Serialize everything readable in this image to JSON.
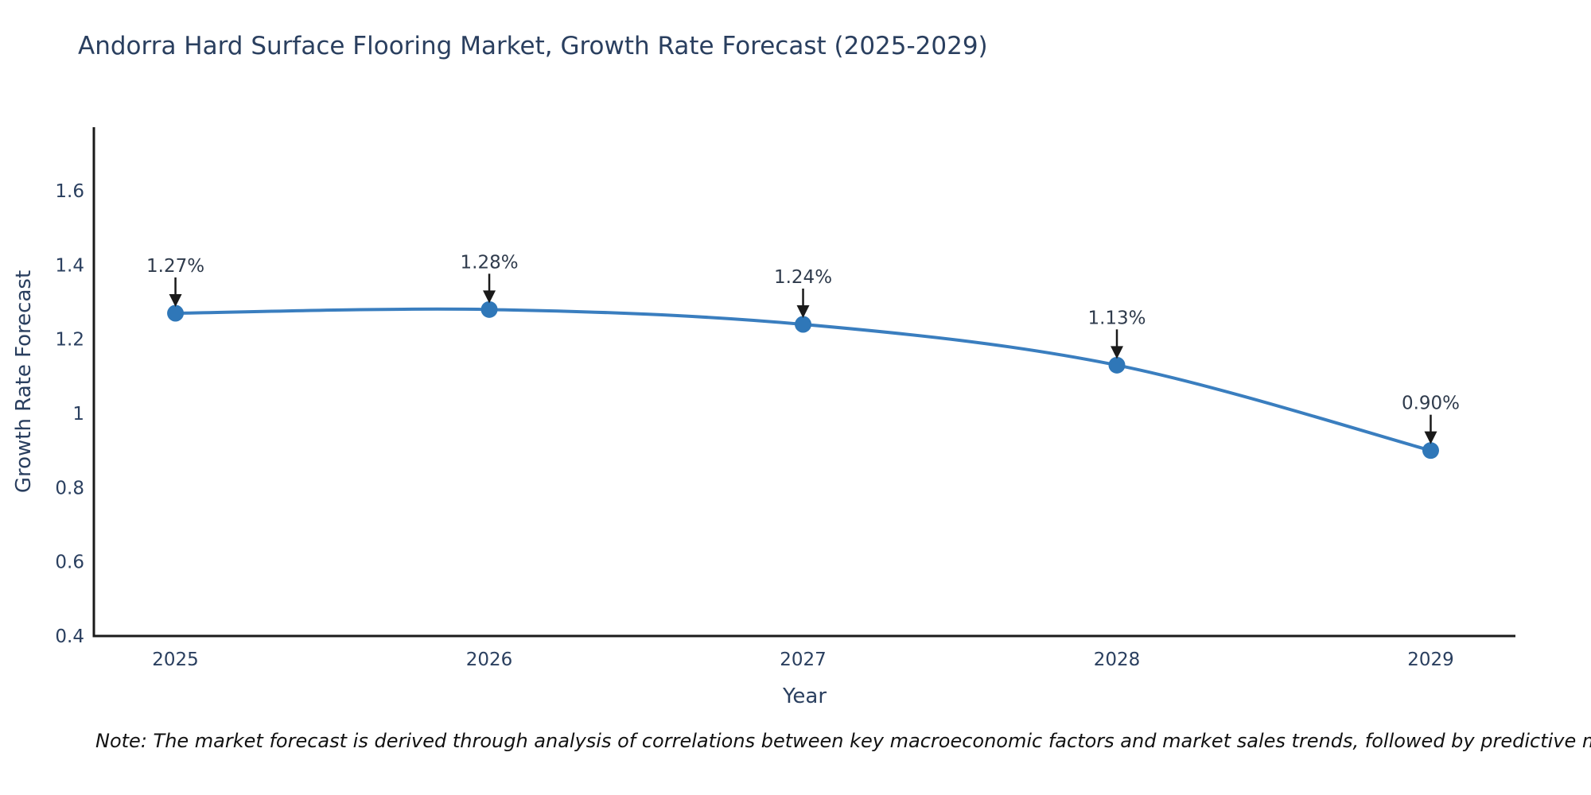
{
  "chart_data": {
    "type": "line",
    "title": "Andorra Hard Surface Flooring Market, Growth Rate Forecast (2025-2029)",
    "xlabel": "Year",
    "ylabel": "Growth Rate Forecast",
    "x": [
      2025,
      2026,
      2027,
      2028,
      2029
    ],
    "values": [
      1.27,
      1.28,
      1.24,
      1.13,
      0.9
    ],
    "point_labels": [
      "1.27%",
      "1.28%",
      "1.24%",
      "1.13%",
      "0.90%"
    ],
    "x_tick_labels": [
      "2025",
      "2026",
      "2027",
      "2028",
      "2029"
    ],
    "y_ticks": [
      0.4,
      0.6,
      0.8,
      1,
      1.2,
      1.4,
      1.6
    ],
    "y_tick_labels": [
      "0.4",
      "0.6",
      "0.8",
      "1",
      "1.2",
      "1.4",
      "1.6"
    ],
    "xlim": [
      2024.74,
      2029.27
    ],
    "ylim": [
      0.4,
      1.7714
    ],
    "grid": false,
    "legend": "none",
    "line_shape": "spline",
    "line_color": "#3a7ebf",
    "marker_color": "#2f77b8",
    "axis_color": "#1a1a1a",
    "text_color": "#2a3f5f",
    "annotation_arrow_color": "#1a1a1a",
    "note": "Note: The market forecast is derived through analysis of correlations between key macroeconomic factors and market sales trends, followed by predictive modeling to project future sales"
  }
}
